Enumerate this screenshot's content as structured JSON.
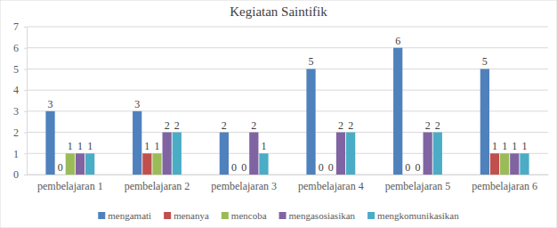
{
  "chart_data": {
    "type": "bar",
    "title": "Kegiatan Saintifik",
    "categories": [
      "pembelajaran 1",
      "pembelajaran 2",
      "pembelajaran 3",
      "pembelajaran 4",
      "pembelajaran 5",
      "pembelajaran 6"
    ],
    "series": [
      {
        "name": "mengamati",
        "color": "#4f81bd",
        "values": [
          3,
          3,
          2,
          5,
          6,
          5
        ]
      },
      {
        "name": "menanya",
        "color": "#c0504d",
        "values": [
          0,
          1,
          0,
          0,
          0,
          1
        ]
      },
      {
        "name": "mencoba",
        "color": "#9bbb59",
        "values": [
          1,
          1,
          0,
          0,
          0,
          1
        ]
      },
      {
        "name": "mengasosiasikan",
        "color": "#8064a2",
        "values": [
          1,
          2,
          2,
          2,
          2,
          1
        ]
      },
      {
        "name": "mengkomunikasikan",
        "color": "#4bacc6",
        "values": [
          1,
          2,
          1,
          2,
          2,
          1
        ]
      }
    ],
    "ylim": [
      0,
      7
    ],
    "yticks": [
      0,
      1,
      2,
      3,
      4,
      5,
      6,
      7
    ],
    "grid": true,
    "legend": "bottom",
    "data_labels": true
  }
}
